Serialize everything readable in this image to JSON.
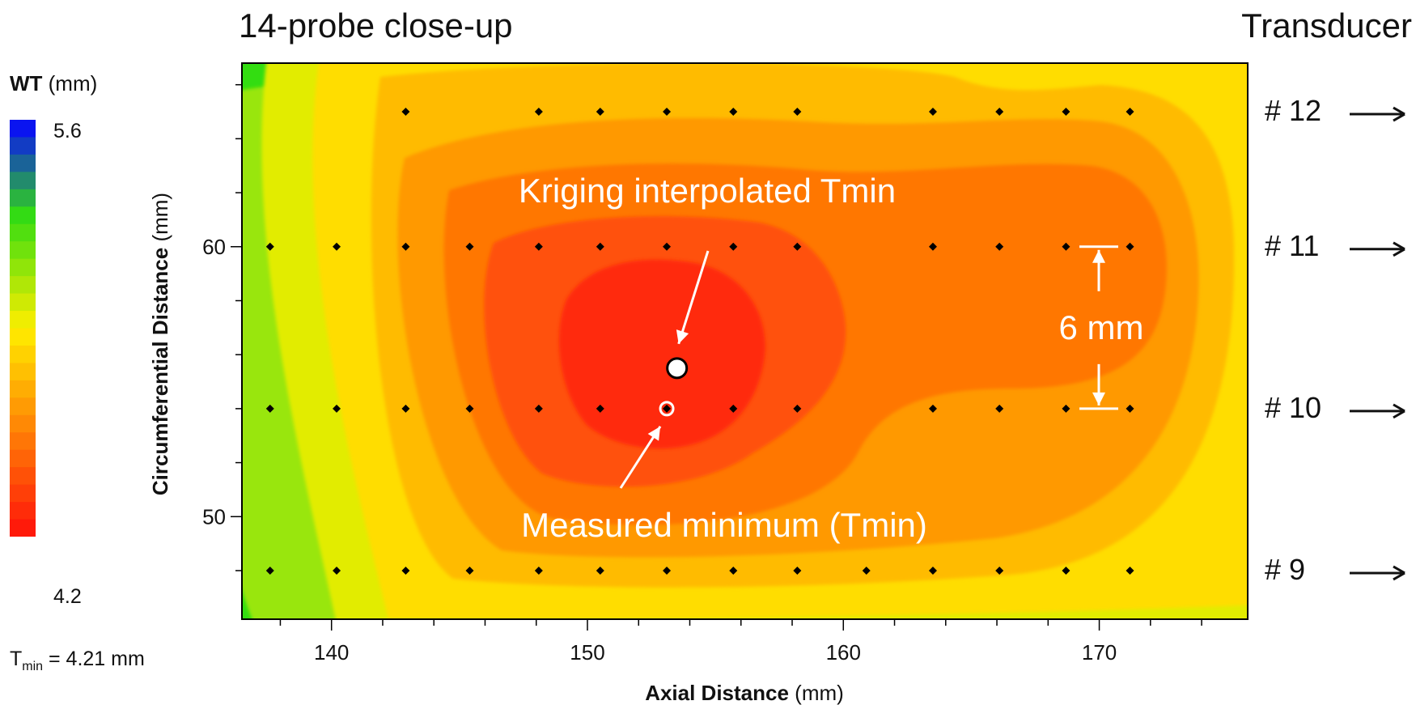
{
  "title": "14-probe close-up",
  "transducer_title": "Transducer",
  "legend": {
    "title_bold": "WT",
    "title_unit": " (mm)",
    "max_label": "5.6",
    "min_label": "4.2",
    "levels": 24
  },
  "tmin_text": {
    "prefix": "T",
    "sub": "min",
    "suffix": " = 4.21 mm"
  },
  "transducers": [
    {
      "label": "# 12",
      "y": 65
    },
    {
      "label": "# 11",
      "y": 60
    },
    {
      "label": "# 10",
      "y": 54
    },
    {
      "label": "# 9",
      "y": 48
    }
  ],
  "annotations": {
    "kriging": "Kriging interpolated Tmin",
    "measured": "Measured minimum (Tmin)",
    "spacing": "6 mm"
  },
  "colors": {
    "low": "#ff1a0a",
    "mid": "#ffee00",
    "high_green": "#33dd11",
    "high_blue": "#0a14f0"
  },
  "chart_data": {
    "type": "heatmap",
    "xlabel_bold": "Axial Distance",
    "xlabel_unit": " (mm)",
    "ylabel_bold": "Circumferential Distance",
    "ylabel_unit": " (mm)",
    "xlim": [
      136.5,
      175.8
    ],
    "ylim": [
      46.2,
      66.8
    ],
    "xticks": [
      140,
      150,
      160,
      170
    ],
    "yticks": [
      50,
      60
    ],
    "probe_rows": [
      {
        "y": 65,
        "x": [
          142.9,
          148.1,
          150.5,
          153.1,
          155.7,
          158.2,
          163.5,
          166.1,
          168.7,
          171.2
        ]
      },
      {
        "y": 60,
        "x": [
          137.6,
          140.2,
          142.9,
          145.4,
          148.1,
          150.5,
          153.1,
          155.7,
          158.2,
          163.5,
          166.1,
          168.7,
          171.2
        ]
      },
      {
        "y": 54,
        "x": [
          137.6,
          140.2,
          142.9,
          145.4,
          148.1,
          150.5,
          153.1,
          155.7,
          158.2,
          163.5,
          166.1,
          168.7,
          171.2
        ]
      },
      {
        "y": 48,
        "x": [
          137.6,
          140.2,
          142.9,
          145.4,
          148.1,
          150.5,
          153.1,
          155.7,
          158.2,
          160.9,
          163.5,
          166.1,
          168.7,
          171.2
        ]
      }
    ],
    "kriging_min": {
      "x": 153.5,
      "y": 55.5
    },
    "measured_min": {
      "x": 153.1,
      "y": 54.0
    },
    "tmin_mm": 4.21,
    "value_range": [
      4.2,
      5.6
    ]
  }
}
